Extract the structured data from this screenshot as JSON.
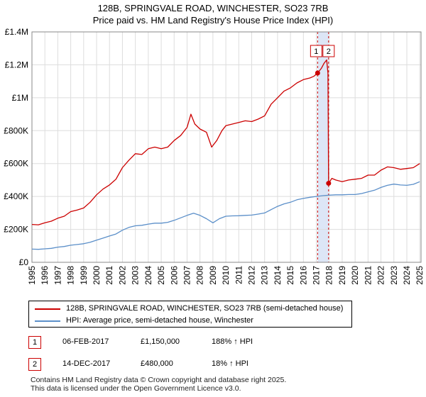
{
  "title_line1": "128B, SPRINGVALE ROAD, WINCHESTER, SO23 7RB",
  "title_line2": "Price paid vs. HM Land Registry's House Price Index (HPI)",
  "legend": {
    "property_label": "128B, SPRINGVALE ROAD, WINCHESTER, SO23 7RB (semi-detached house)",
    "hpi_label": "HPI: Average price, semi-detached house, Winchester"
  },
  "sales": [
    {
      "id": "1",
      "date": "06-FEB-2017",
      "price": "£1,150,000",
      "hpi": "188% ↑ HPI"
    },
    {
      "id": "2",
      "date": "14-DEC-2017",
      "price": "£480,000",
      "hpi": "18% ↑ HPI"
    }
  ],
  "footer_line1": "Contains HM Land Registry data © Crown copyright and database right 2025.",
  "footer_line2": "This data is licensed under the Open Government Licence v3.0.",
  "colors": {
    "property": "#cc0000",
    "hpi": "#5b8fc9",
    "band": "#dde6f6",
    "grid": "#dddddd"
  },
  "chart_data": {
    "type": "line",
    "title": "Price paid vs. HM Land Registry's House Price Index (HPI)",
    "xlabel": "",
    "ylabel": "",
    "xlim": [
      1995,
      2025.1
    ],
    "ylim": [
      0,
      1400000
    ],
    "grid": true,
    "y_ticks": [
      {
        "value": 0,
        "label": "£0"
      },
      {
        "value": 200000,
        "label": "£200K"
      },
      {
        "value": 400000,
        "label": "£400K"
      },
      {
        "value": 600000,
        "label": "£600K"
      },
      {
        "value": 800000,
        "label": "£800K"
      },
      {
        "value": 1000000,
        "label": "£1M"
      },
      {
        "value": 1200000,
        "label": "£1.2M"
      },
      {
        "value": 1400000,
        "label": "£1.4M"
      }
    ],
    "x_ticks": [
      "1995",
      "1996",
      "1997",
      "1998",
      "1999",
      "2000",
      "2001",
      "2002",
      "2003",
      "2004",
      "2005",
      "2006",
      "2007",
      "2008",
      "2009",
      "2010",
      "2011",
      "2012",
      "2013",
      "2014",
      "2015",
      "2016",
      "2017",
      "2018",
      "2019",
      "2020",
      "2021",
      "2022",
      "2023",
      "2024",
      "2025"
    ],
    "highlight_band": [
      2017.1,
      2017.95
    ],
    "sale_markers": [
      {
        "label": "1",
        "x": 2017.1,
        "y": 1150000
      },
      {
        "label": "2",
        "x": 2017.95,
        "y": 480000
      }
    ],
    "series": [
      {
        "name": "128B, SPRINGVALE ROAD, WINCHESTER, SO23 7RB (semi-detached house)",
        "color": "#cc0000",
        "x": [
          1995.0,
          1995.5,
          1996.0,
          1996.5,
          1997.0,
          1997.5,
          1998.0,
          1998.5,
          1999.0,
          1999.5,
          2000.0,
          2000.5,
          2001.0,
          2001.5,
          2002.0,
          2002.5,
          2003.0,
          2003.5,
          2004.0,
          2004.5,
          2005.0,
          2005.5,
          2006.0,
          2006.5,
          2007.0,
          2007.3,
          2007.6,
          2008.0,
          2008.5,
          2008.9,
          2009.3,
          2009.7,
          2010.0,
          2010.5,
          2011.0,
          2011.5,
          2012.0,
          2012.5,
          2013.0,
          2013.5,
          2014.0,
          2014.5,
          2015.0,
          2015.5,
          2016.0,
          2016.5,
          2016.8,
          2017.1,
          2017.4,
          2017.6,
          2017.8,
          2017.9,
          2017.95,
          2018.2,
          2018.5,
          2019.0,
          2019.5,
          2020.0,
          2020.5,
          2021.0,
          2021.5,
          2022.0,
          2022.5,
          2023.0,
          2023.5,
          2024.0,
          2024.5,
          2025.0
        ],
        "y": [
          230000,
          228000,
          240000,
          250000,
          268000,
          280000,
          308000,
          318000,
          330000,
          365000,
          410000,
          445000,
          470000,
          505000,
          575000,
          620000,
          660000,
          655000,
          690000,
          700000,
          690000,
          700000,
          740000,
          770000,
          820000,
          900000,
          840000,
          810000,
          790000,
          700000,
          740000,
          800000,
          830000,
          840000,
          850000,
          860000,
          855000,
          870000,
          890000,
          960000,
          1000000,
          1040000,
          1060000,
          1090000,
          1110000,
          1120000,
          1130000,
          1150000,
          1180000,
          1210000,
          1230000,
          1150000,
          480000,
          510000,
          500000,
          490000,
          500000,
          505000,
          510000,
          530000,
          530000,
          560000,
          580000,
          575000,
          565000,
          570000,
          575000,
          600000
        ]
      },
      {
        "name": "HPI: Average price, semi-detached house, Winchester",
        "color": "#5b8fc9",
        "x": [
          1995.0,
          1995.5,
          1996.0,
          1996.5,
          1997.0,
          1997.5,
          1998.0,
          1998.5,
          1999.0,
          1999.5,
          2000.0,
          2000.5,
          2001.0,
          2001.5,
          2002.0,
          2002.5,
          2003.0,
          2003.5,
          2004.0,
          2004.5,
          2005.0,
          2005.5,
          2006.0,
          2006.5,
          2007.0,
          2007.5,
          2008.0,
          2008.5,
          2009.0,
          2009.5,
          2010.0,
          2010.5,
          2011.0,
          2011.5,
          2012.0,
          2012.5,
          2013.0,
          2013.5,
          2014.0,
          2014.5,
          2015.0,
          2015.5,
          2016.0,
          2016.5,
          2017.0,
          2017.5,
          2018.0,
          2018.5,
          2019.0,
          2019.5,
          2020.0,
          2020.5,
          2021.0,
          2021.5,
          2022.0,
          2022.5,
          2023.0,
          2023.5,
          2024.0,
          2024.5,
          2025.0
        ],
        "y": [
          80000,
          79000,
          82000,
          85000,
          92000,
          96000,
          104000,
          108000,
          113000,
          122000,
          135000,
          147000,
          160000,
          172000,
          195000,
          212000,
          222000,
          225000,
          232000,
          238000,
          238000,
          243000,
          255000,
          270000,
          285000,
          298000,
          285000,
          265000,
          240000,
          265000,
          280000,
          282000,
          283000,
          285000,
          287000,
          293000,
          300000,
          320000,
          340000,
          355000,
          365000,
          380000,
          388000,
          395000,
          400000,
          405000,
          408000,
          410000,
          410000,
          412000,
          412000,
          418000,
          428000,
          438000,
          455000,
          468000,
          475000,
          470000,
          468000,
          474000,
          490000
        ]
      }
    ]
  }
}
